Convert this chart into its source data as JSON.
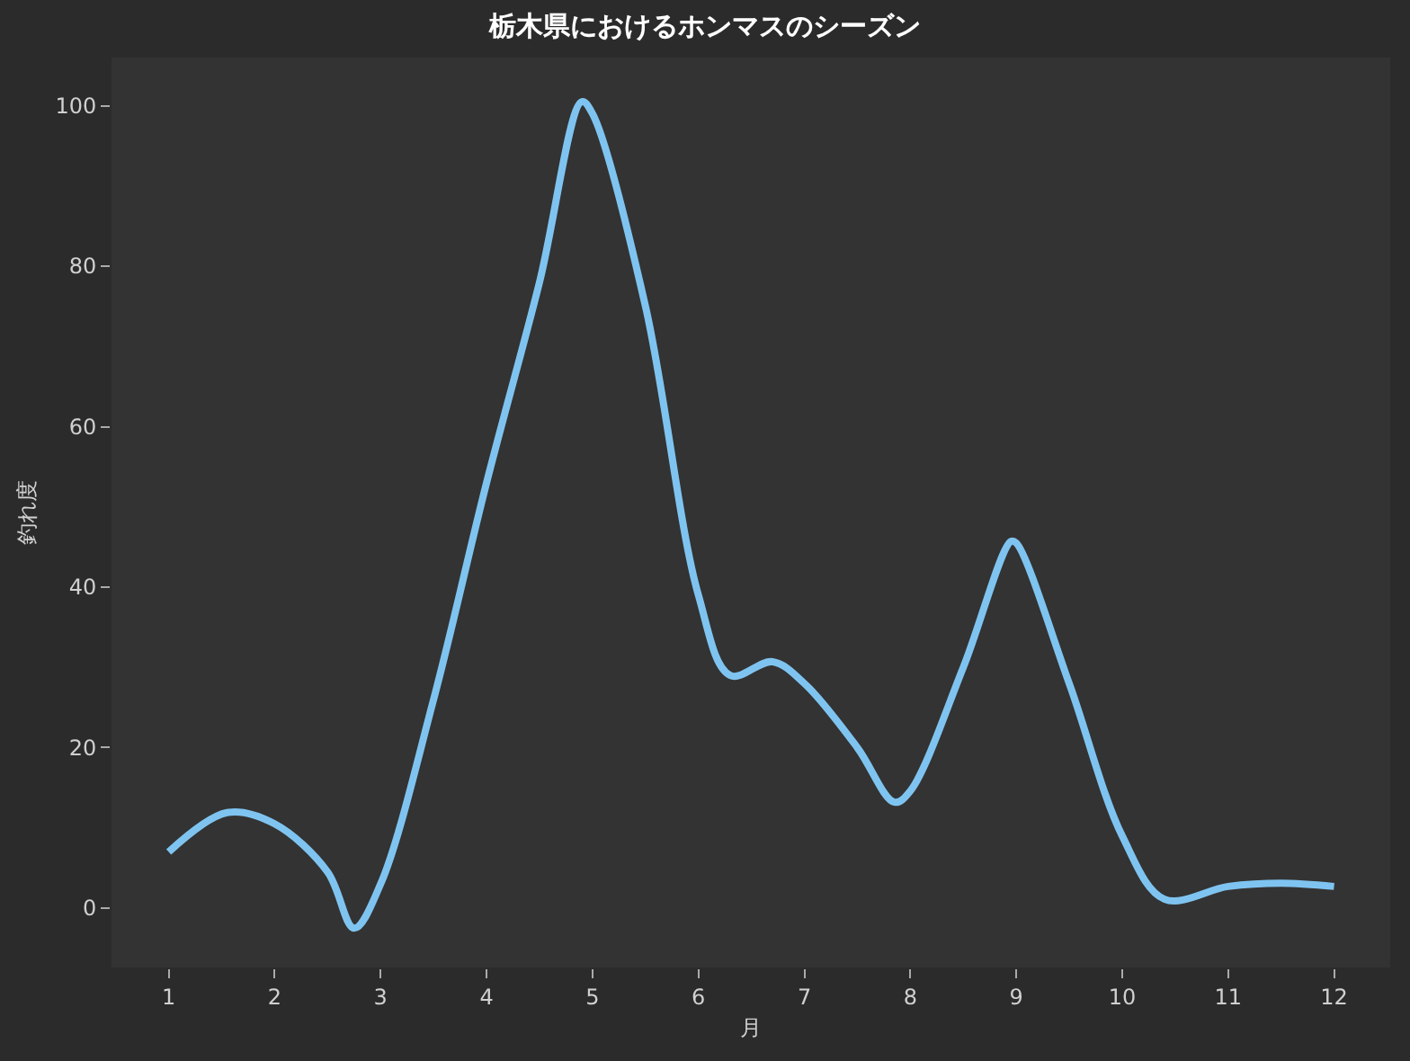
{
  "chart_data": {
    "type": "line",
    "title": "栃木県におけるホンマスのシーズン",
    "xlabel": "月",
    "ylabel": "釣れ度",
    "x": [
      1,
      1.55,
      2,
      2.5,
      2.75,
      3,
      3.5,
      4,
      4.5,
      4.9,
      5,
      5.5,
      6,
      6.3,
      6.7,
      7,
      7.5,
      7.85,
      8,
      8.5,
      8.95,
      9,
      9.5,
      10,
      10.4,
      11,
      11.5,
      12
    ],
    "series": [
      {
        "color": "#7fc4f0",
        "values": [
          7,
          11.9,
          10.5,
          4.5,
          -2.5,
          3,
          26,
          53,
          78,
          100.5,
          99,
          75,
          39,
          29,
          30.7,
          28,
          20,
          13.2,
          14.6,
          30,
          45.7,
          45.5,
          28,
          9,
          1.1,
          2.7,
          3.1,
          2.7
        ]
      }
    ],
    "xlim": [
      0.46,
      12.53
    ],
    "ylim": [
      -7.4,
      106
    ],
    "xticks": [
      1,
      2,
      3,
      4,
      5,
      6,
      7,
      8,
      9,
      10,
      11,
      12
    ],
    "yticks": [
      0,
      20,
      40,
      60,
      80,
      100
    ],
    "grid": false,
    "legend": false,
    "marker": "none",
    "line_style": "solid"
  }
}
